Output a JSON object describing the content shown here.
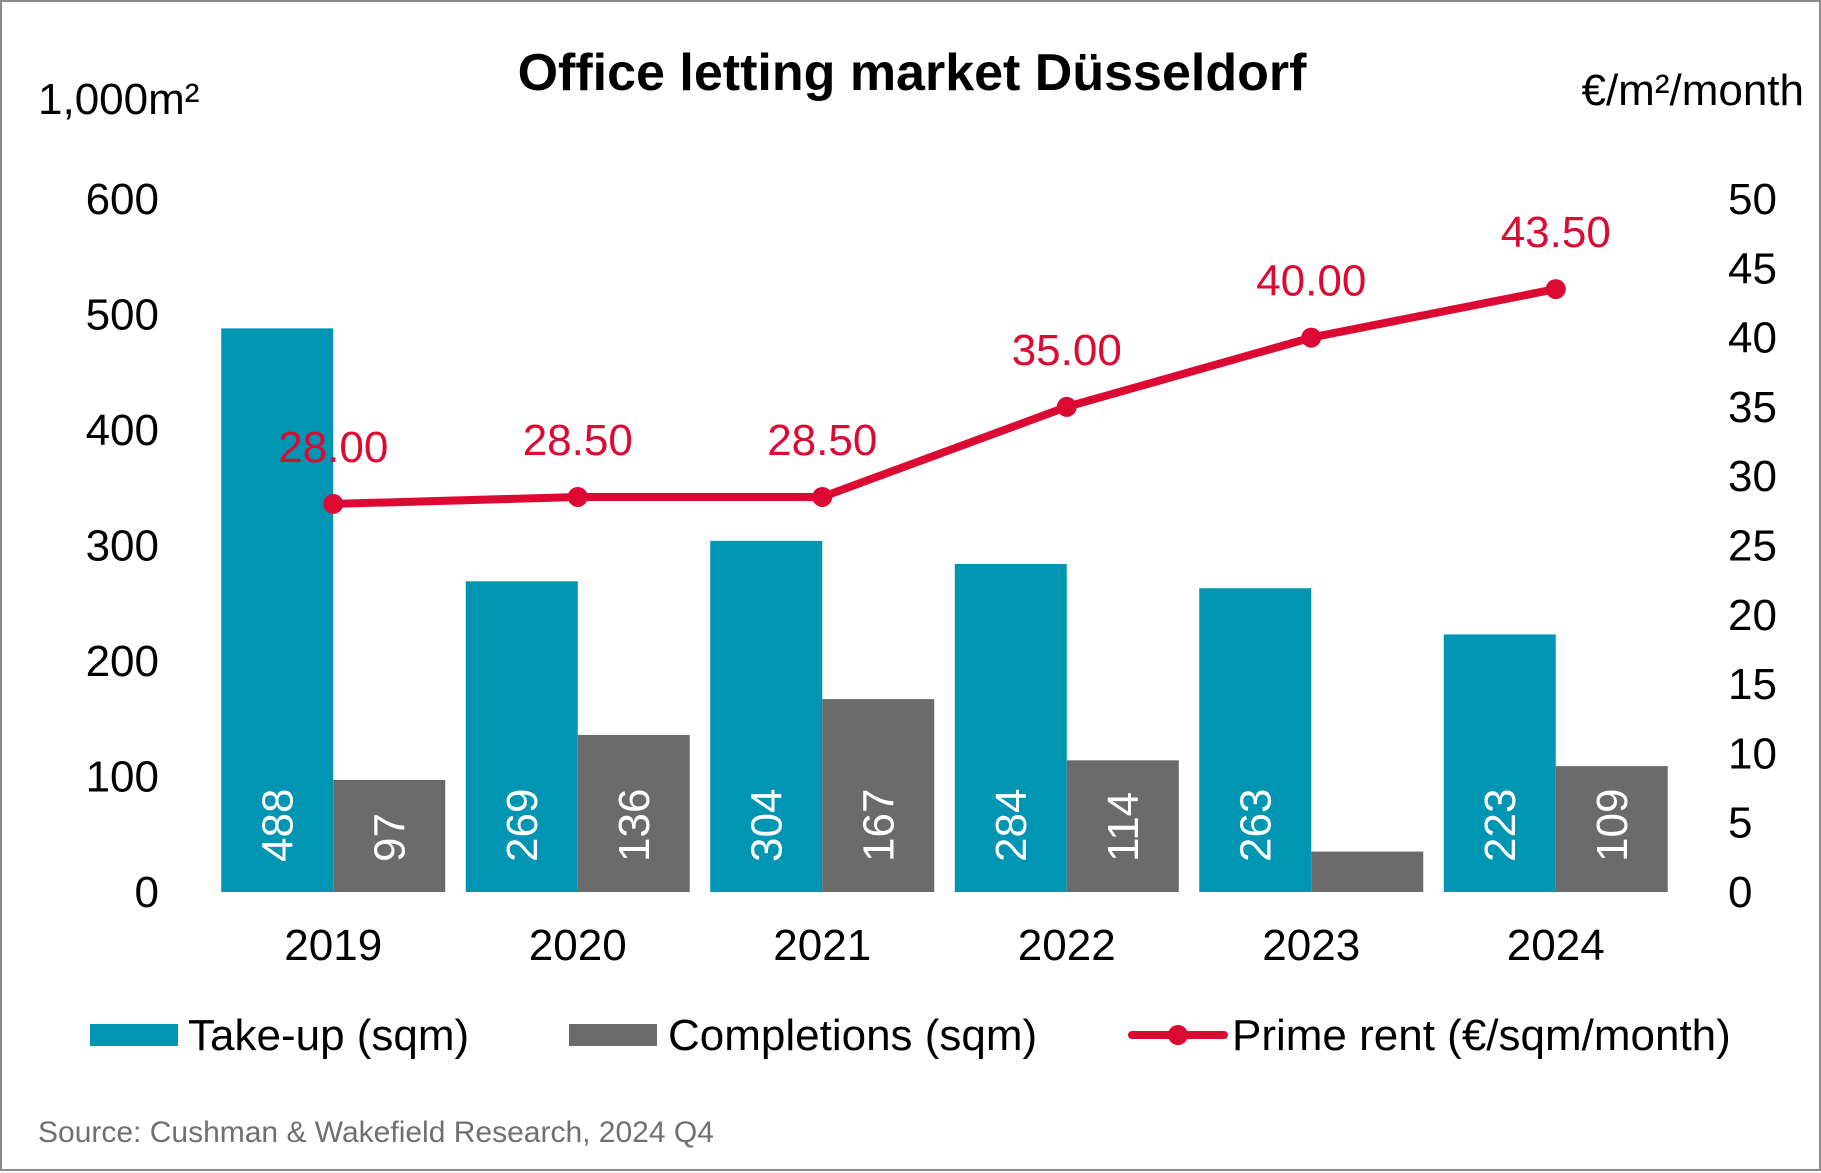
{
  "chart_data": {
    "type": "bar",
    "title": "Office letting market Düsseldorf",
    "left_axis_label": "1,000m²",
    "right_axis_label": "€/m²/month",
    "categories": [
      "2019",
      "2020",
      "2021",
      "2022",
      "2023",
      "2024"
    ],
    "left_ylim": [
      0,
      600
    ],
    "left_ticks": [
      "0",
      "100",
      "200",
      "300",
      "400",
      "500",
      "600"
    ],
    "right_ylim": [
      0,
      50
    ],
    "right_ticks": [
      "0",
      "5",
      "10",
      "15",
      "20",
      "25",
      "30",
      "35",
      "40",
      "45",
      "50"
    ],
    "grid": false,
    "legend_position": "bottom",
    "series": [
      {
        "name": "Take-up (sqm)",
        "type": "bar",
        "axis": "left",
        "color": "#0095b3",
        "values": [
          488,
          269,
          304,
          284,
          263,
          223
        ],
        "labels": [
          "488",
          "269",
          "304",
          "284",
          "263",
          "223"
        ]
      },
      {
        "name": "Completions (sqm)",
        "type": "bar",
        "axis": "left",
        "color": "#6b6b6b",
        "values": [
          97,
          136,
          167,
          114,
          35,
          109
        ],
        "labels": [
          "97",
          "136",
          "167",
          "114",
          "",
          "109"
        ]
      },
      {
        "name": "Prime rent (€/sqm/month)",
        "type": "line",
        "axis": "right",
        "color": "#dc0a32",
        "values": [
          28.0,
          28.5,
          28.5,
          35.0,
          40.0,
          43.5
        ],
        "labels": [
          "28.00",
          "28.50",
          "28.50",
          "35.00",
          "40.00",
          "43.50"
        ]
      }
    ],
    "source": "Source: Cushman & Wakefield Research, 2024 Q4"
  }
}
